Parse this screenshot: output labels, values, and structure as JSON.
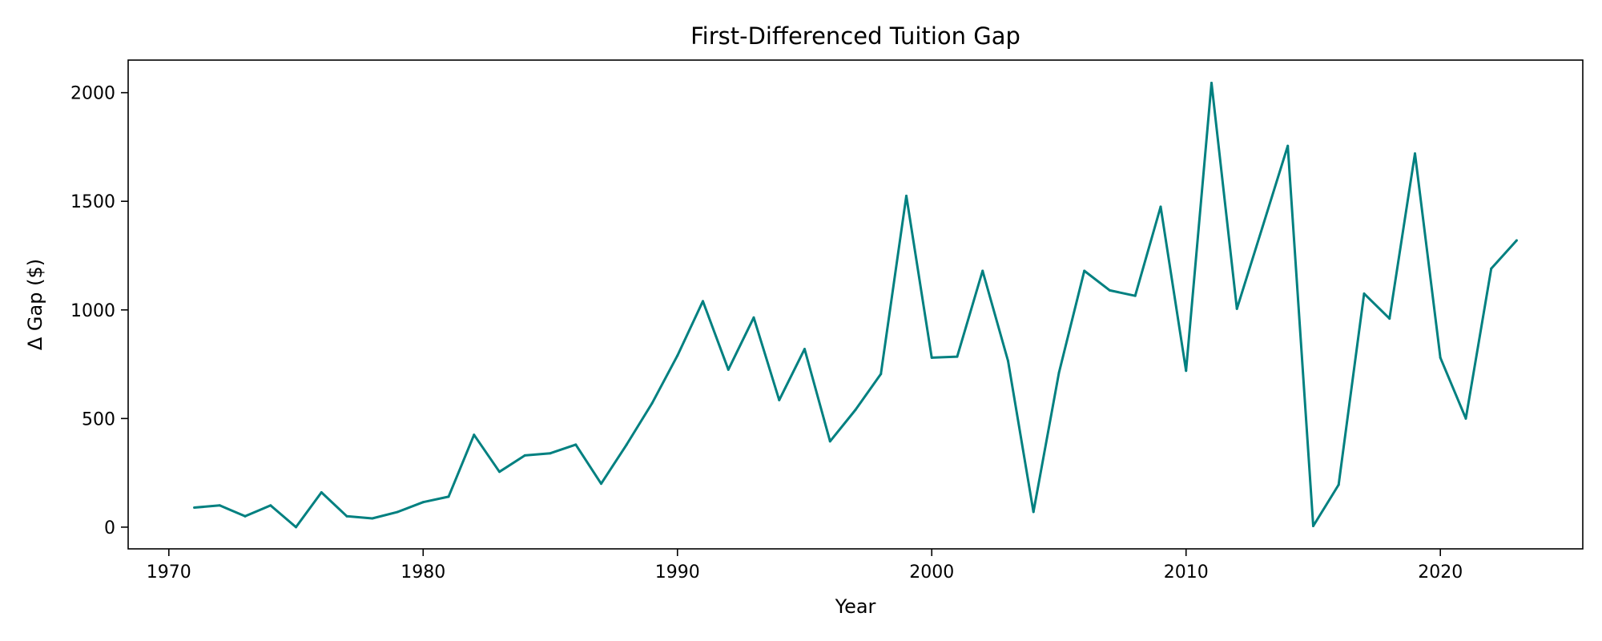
{
  "chart_data": {
    "type": "line",
    "title": "First-Differenced Tuition Gap",
    "xlabel": "Year",
    "ylabel": "Δ Gap ($)",
    "xlim": [
      1968.4,
      2025.6
    ],
    "ylim": [
      -100,
      2150
    ],
    "xticks": [
      1970,
      1980,
      1990,
      2000,
      2010,
      2020
    ],
    "yticks": [
      0,
      500,
      1000,
      1500,
      2000
    ],
    "grid": false,
    "series": [
      {
        "color": "#008080",
        "x": [
          1971,
          1972,
          1973,
          1974,
          1975,
          1976,
          1977,
          1978,
          1979,
          1980,
          1981,
          1982,
          1983,
          1984,
          1985,
          1986,
          1987,
          1988,
          1989,
          1990,
          1991,
          1992,
          1993,
          1994,
          1995,
          1996,
          1997,
          1998,
          1999,
          2000,
          2001,
          2002,
          2003,
          2004,
          2005,
          2006,
          2007,
          2008,
          2009,
          2010,
          2011,
          2012,
          2013,
          2014,
          2015,
          2016,
          2017,
          2018,
          2019,
          2020,
          2021,
          2022,
          2023
        ],
        "y": [
          90,
          100,
          50,
          100,
          0,
          160,
          50,
          40,
          70,
          115,
          140,
          425,
          255,
          330,
          340,
          380,
          200,
          380,
          570,
          790,
          1040,
          725,
          965,
          585,
          820,
          395,
          540,
          705,
          1525,
          780,
          785,
          1180,
          765,
          70,
          710,
          1180,
          1090,
          1065,
          1475,
          720,
          2045,
          1005,
          1380,
          1755,
          5,
          195,
          1075,
          960,
          1720,
          780,
          500,
          1190,
          1320
        ]
      }
    ]
  }
}
